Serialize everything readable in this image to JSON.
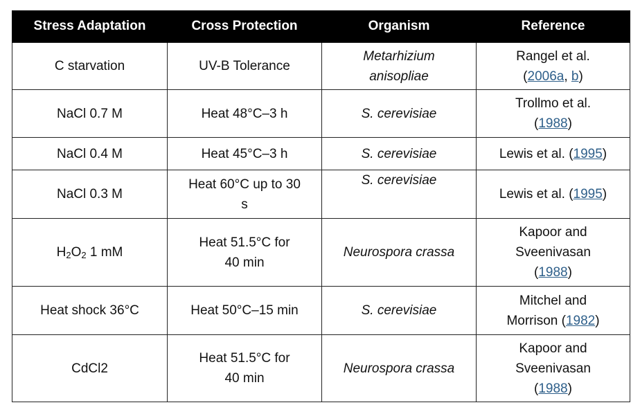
{
  "headers": [
    "Stress Adaptation",
    "Cross Protection",
    "Organism",
    "Reference"
  ],
  "rows": [
    {
      "stress": "C starvation",
      "cross": "UV-B Tolerance",
      "organism_1": "Metarhizium",
      "organism_2": "anisopliae",
      "ref_author": "Rangel et al.",
      "ref_open": "(",
      "ref_year_a": "2006a",
      "ref_sep": ", ",
      "ref_year_b": "b",
      "ref_close": ")"
    },
    {
      "stress": "NaCl 0.7 M",
      "cross": "Heat 48°C–3 h",
      "organism": "S. cerevisiae",
      "ref_author": "Trollmo et al.",
      "ref_open": "(",
      "ref_year": "1988",
      "ref_close": ")"
    },
    {
      "stress": "NaCl 0.4 M",
      "cross": "Heat 45°C–3 h",
      "organism": "S. cerevisiae",
      "ref_author": "Lewis et al. ",
      "ref_open": "(",
      "ref_year": "1995",
      "ref_close": ")"
    },
    {
      "stress": "NaCl 0.3 M",
      "cross_1": "Heat 60°C up to 30",
      "cross_2": "s",
      "organism": "S. cerevisiae",
      "ref_author": "Lewis et al. ",
      "ref_open": "(",
      "ref_year": "1995",
      "ref_close": ")"
    },
    {
      "stress_h": "H",
      "stress_sub1": "2",
      "stress_o": "O",
      "stress_sub2": "2",
      "stress_tail": " 1 mM",
      "cross_1": "Heat 51.5°C for",
      "cross_2": "40 min",
      "organism": "Neurospora crassa",
      "ref_author_1": "Kapoor and",
      "ref_author_2": "Sveenivasan",
      "ref_open": "(",
      "ref_year": "1988",
      "ref_close": ")"
    },
    {
      "stress": "Heat shock 36°C",
      "cross": "Heat 50°C–15 min",
      "organism": "S. cerevisiae",
      "ref_author_1": "Mitchel and",
      "ref_author_2": "Morrison ",
      "ref_open": "(",
      "ref_year": "1982",
      "ref_close": ")"
    },
    {
      "stress": "CdCl2",
      "cross_1": "Heat 51.5°C for",
      "cross_2": "40 min",
      "organism": "Neurospora crassa",
      "ref_author_1": "Kapoor and",
      "ref_author_2": "Sveenivasan",
      "ref_open": "(",
      "ref_year": "1988",
      "ref_close": ")"
    }
  ]
}
